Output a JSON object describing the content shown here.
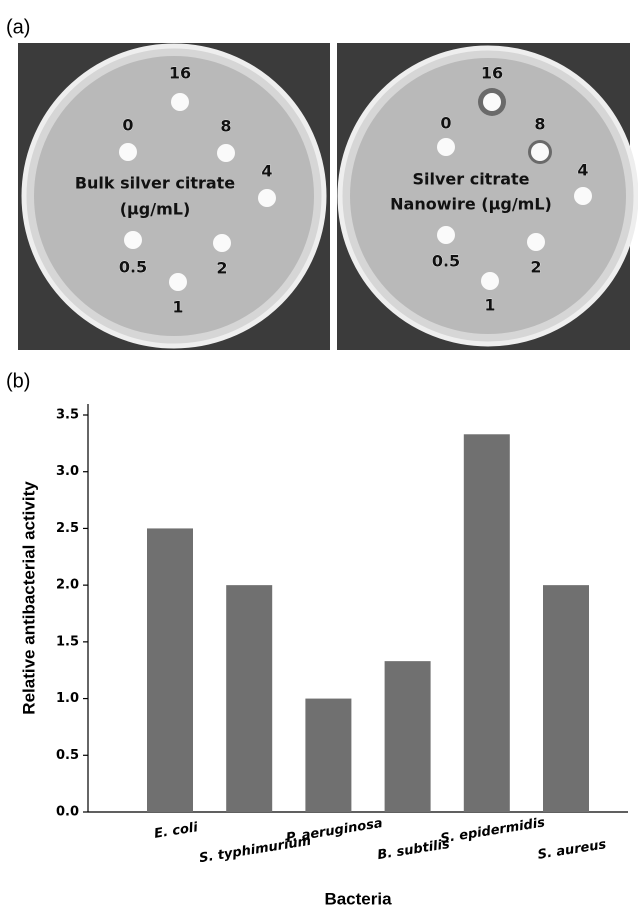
{
  "panel_a": {
    "label": "(a)",
    "plates": [
      {
        "doses": [
          "16",
          "0",
          "8",
          "4",
          "0.5",
          "2",
          "1"
        ],
        "caption": [
          "Bulk silver citrate",
          "(μg/mL)"
        ]
      },
      {
        "doses": [
          "16",
          "0",
          "8",
          "4",
          "0.5",
          "2",
          "1"
        ],
        "caption": [
          "Silver citrate",
          "Nanowire (μg/mL)"
        ]
      }
    ]
  },
  "panel_b": {
    "label": "(b)"
  },
  "chart_data": {
    "type": "bar",
    "x_label": "Bacteria",
    "y_label": "Relative antibacterial activity",
    "categories": [
      "E. coli",
      "S. typhimurium",
      "P. aeruginosa",
      "B. subtilis",
      "S. epidermidis",
      "S. aureus"
    ],
    "values": [
      2.5,
      2.0,
      1.0,
      1.33,
      3.33,
      2.0
    ],
    "color": "#707070",
    "ylim": [
      0,
      3.5
    ],
    "yticks": [
      {
        "value": 0,
        "label": "0.0"
      },
      0.5,
      {
        "value": 1,
        "label": "1.0"
      },
      1.5,
      {
        "value": 2,
        "label": "2.0"
      },
      2.5,
      {
        "value": 3,
        "label": "3.0"
      },
      3.5
    ]
  }
}
